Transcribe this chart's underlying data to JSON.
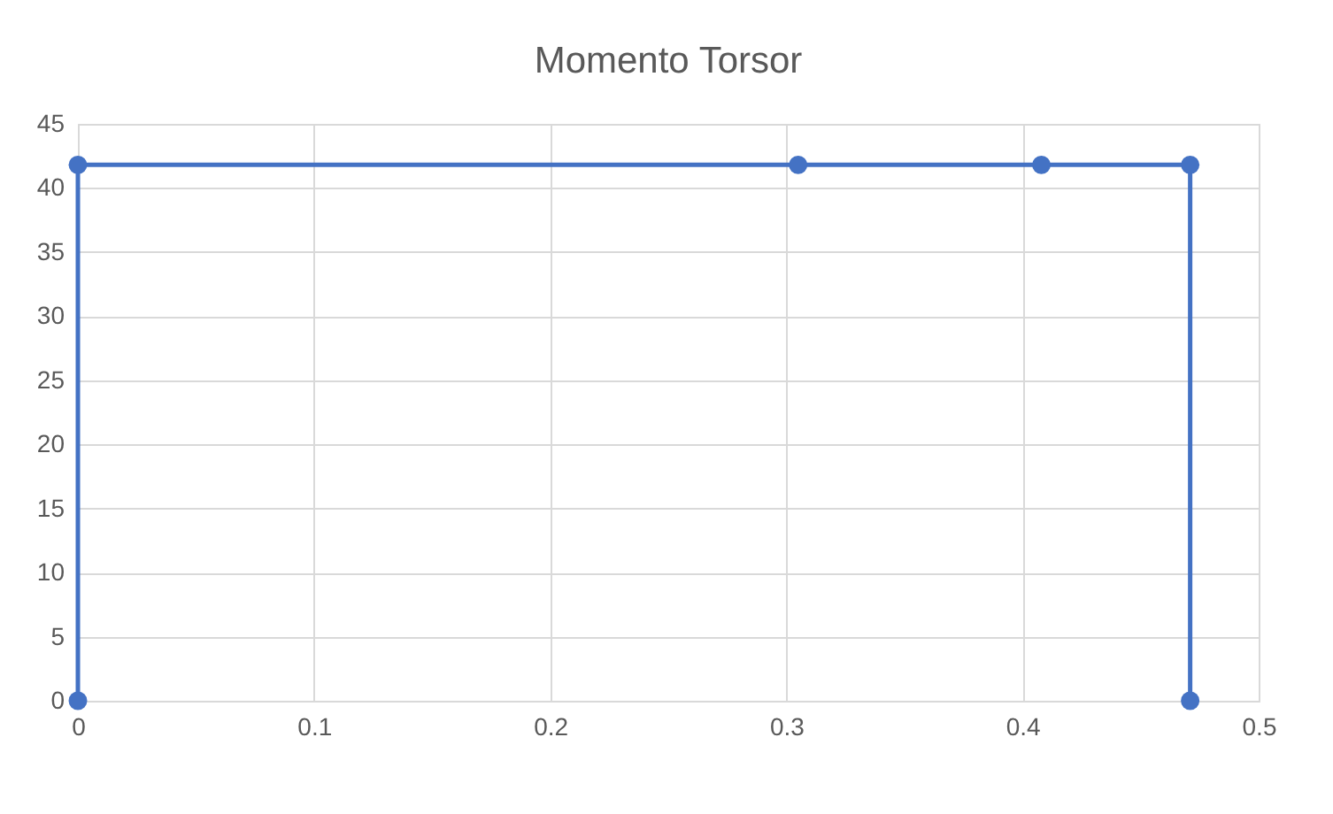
{
  "chart_data": {
    "type": "line",
    "title": "Momento Torsor",
    "x": [
      0,
      0,
      0.305,
      0.408,
      0.471,
      0.471
    ],
    "series": [
      {
        "color": "#4472c4",
        "values": [
          0,
          41.8,
          41.8,
          41.8,
          41.8,
          0
        ]
      }
    ],
    "xlim": [
      0,
      0.5
    ],
    "xticks": [
      0,
      0.1,
      0.2,
      0.3,
      0.4,
      0.5
    ],
    "ylim": [
      0,
      45
    ],
    "yticks": [
      0,
      5,
      10,
      15,
      20,
      25,
      30,
      35,
      40,
      45
    ],
    "grid": true,
    "marker": "circle",
    "line_style": "solid",
    "legend": false
  }
}
